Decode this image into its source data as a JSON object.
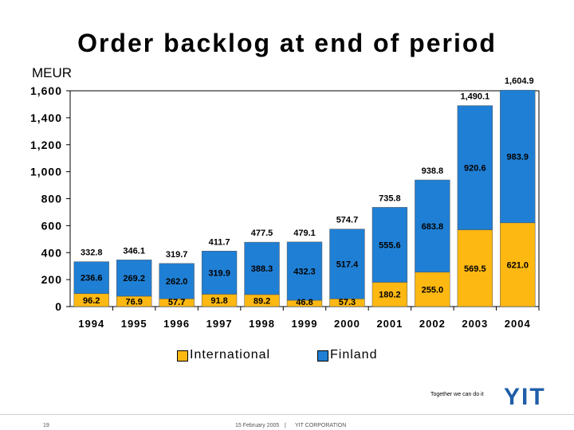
{
  "chart_data": {
    "type": "bar",
    "stacked": true,
    "title": "Order backlog at end of period",
    "unit_label": "MEUR",
    "categories": [
      "1994",
      "1995",
      "1996",
      "1997",
      "1998",
      "1999",
      "2000",
      "2001",
      "2002",
      "2003",
      "2004"
    ],
    "series": [
      {
        "name": "International",
        "color": "#fdb812",
        "values": [
          96.2,
          76.9,
          57.7,
          91.8,
          89.2,
          46.8,
          57.3,
          180.2,
          255.0,
          569.5,
          621.0
        ]
      },
      {
        "name": "Finland",
        "color": "#1f7fd4",
        "values": [
          236.6,
          269.2,
          262.0,
          319.9,
          388.3,
          432.3,
          517.4,
          555.6,
          683.8,
          920.6,
          983.9
        ]
      }
    ],
    "totals": [
      332.8,
      346.1,
      319.7,
      411.7,
      477.5,
      479.1,
      574.7,
      735.8,
      938.8,
      1490.1,
      1604.9
    ],
    "value_labels": {
      "International": [
        "96.2",
        "76.9",
        "57.7",
        "91.8",
        "89.2",
        "46.8",
        "57.3",
        "180.2",
        "255.0",
        "569.5",
        "621.0"
      ],
      "Finland": [
        "236.6",
        "269.2",
        "262.0",
        "319.9",
        "388.3",
        "432.3",
        "517.4",
        "555.6",
        "683.8",
        "920.6",
        "983.9"
      ],
      "totals": [
        "332.8",
        "346.1",
        "319.7",
        "411.7",
        "477.5",
        "479.1",
        "574.7",
        "735.8",
        "938.8",
        "1,490.1",
        "1,604.9"
      ]
    },
    "ylim": [
      0,
      1600
    ],
    "yticks": [
      0,
      200,
      400,
      600,
      800,
      1000,
      1200,
      1400,
      1600
    ],
    "ytick_labels": [
      "0",
      "200",
      "400",
      "600",
      "800",
      "1,000",
      "1,200",
      "1,400",
      "1,600"
    ],
    "grid": false,
    "legend_position": "bottom"
  },
  "footer": {
    "tagline": "Together we can do it",
    "logo": "YIT",
    "page_number": "19",
    "date": "15 February 2005",
    "separator": "|",
    "company": "YIT CORPORATION"
  }
}
